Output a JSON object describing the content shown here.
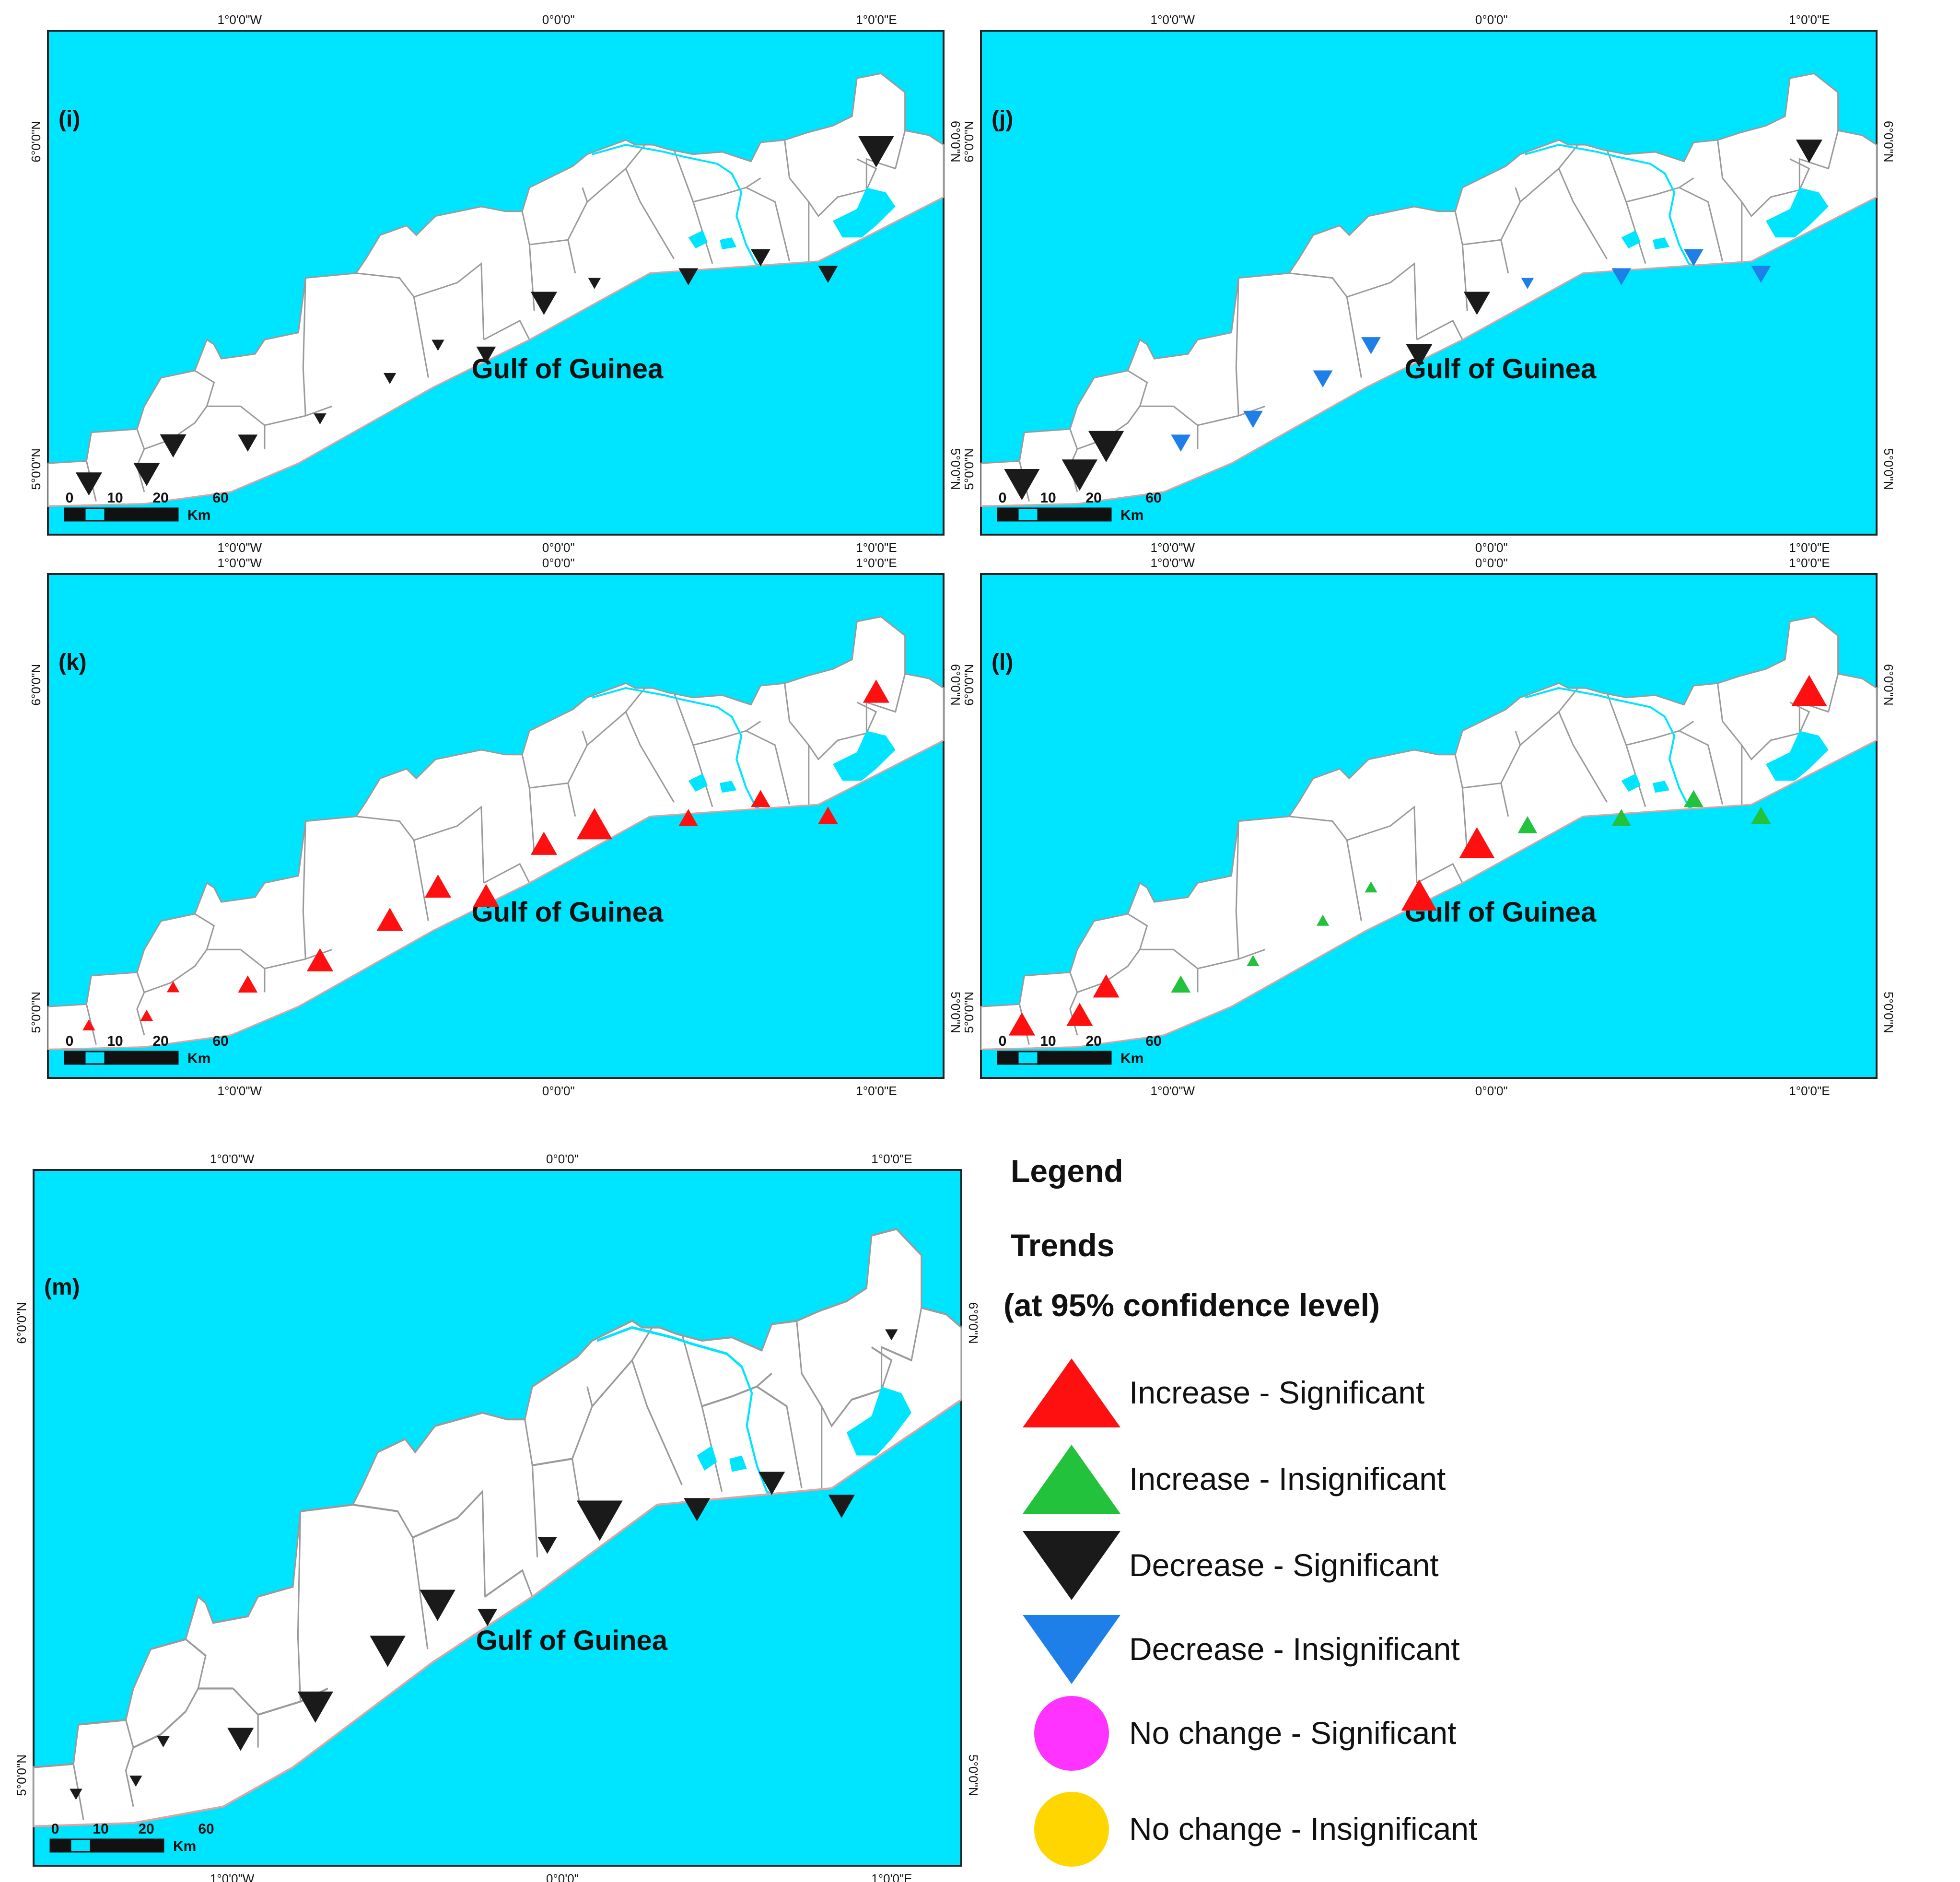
{
  "colors": {
    "sea": "#00E5FF",
    "land": "#FFFFFF",
    "border": "#9A9A9A",
    "coast": "#E8A0A0",
    "increase_significant": "#FF1010",
    "increase_insignificant": "#22C23C",
    "decrease_significant": "#1A1A1A",
    "decrease_insignificant": "#1E7FE8",
    "nochange_significant": "#FF33FF",
    "nochange_insignificant": "#FFD600"
  },
  "axis_labels": {
    "lon_w1": "1°0'0\"W",
    "lon_0": "0°0'0\"",
    "lon_e1": "1°0'0\"E",
    "lat_6n": "6°0'0\"N",
    "lat_5n": "5°0'0\"N"
  },
  "sea_label": "Gulf of Guinea",
  "scale_bar": {
    "ticks": [
      "0",
      "10",
      "20",
      "60"
    ],
    "unit": "Km"
  },
  "panels": [
    {
      "id": "i",
      "label": "(i)",
      "symbols": [
        {
          "d": 0,
          "t": "decrease_significant",
          "s": 2
        },
        {
          "d": 1,
          "t": "decrease_significant",
          "s": 2
        },
        {
          "d": 2,
          "t": "decrease_significant",
          "s": 2
        },
        {
          "d": 3,
          "t": "decrease_significant",
          "s": 1
        },
        {
          "d": 4,
          "t": "decrease_significant",
          "s": 0
        },
        {
          "d": 5,
          "t": "decrease_significant",
          "s": 0
        },
        {
          "d": 6,
          "t": "decrease_significant",
          "s": 0
        },
        {
          "d": 7,
          "t": "decrease_significant",
          "s": 1
        },
        {
          "d": 8,
          "t": "decrease_significant",
          "s": 2
        },
        {
          "d": 9,
          "t": "decrease_significant",
          "s": 0
        },
        {
          "d": 10,
          "t": "decrease_significant",
          "s": 1
        },
        {
          "d": 11,
          "t": "decrease_significant",
          "s": 1
        },
        {
          "d": 12,
          "t": "decrease_significant",
          "s": 1
        },
        {
          "d": 13,
          "t": "decrease_significant",
          "s": 3
        }
      ]
    },
    {
      "id": "j",
      "label": "(j)",
      "symbols": [
        {
          "d": 0,
          "t": "decrease_significant",
          "s": 3
        },
        {
          "d": 1,
          "t": "decrease_significant",
          "s": 3
        },
        {
          "d": 2,
          "t": "decrease_significant",
          "s": 3
        },
        {
          "d": 3,
          "t": "decrease_insignificant",
          "s": 1
        },
        {
          "d": 4,
          "t": "decrease_insignificant",
          "s": 1
        },
        {
          "d": 5,
          "t": "decrease_insignificant",
          "s": 1
        },
        {
          "d": 6,
          "t": "decrease_insignificant",
          "s": 1
        },
        {
          "d": 7,
          "t": "decrease_significant",
          "s": 2
        },
        {
          "d": 8,
          "t": "decrease_significant",
          "s": 2
        },
        {
          "d": 9,
          "t": "decrease_insignificant",
          "s": 0
        },
        {
          "d": 10,
          "t": "decrease_insignificant",
          "s": 1
        },
        {
          "d": 11,
          "t": "decrease_insignificant",
          "s": 1
        },
        {
          "d": 12,
          "t": "decrease_insignificant",
          "s": 1
        },
        {
          "d": 13,
          "t": "decrease_significant",
          "s": 2
        }
      ]
    },
    {
      "id": "k",
      "label": "(k)",
      "symbols": [
        {
          "d": 0,
          "t": "increase_significant",
          "s": 0
        },
        {
          "d": 1,
          "t": "increase_significant",
          "s": 0
        },
        {
          "d": 2,
          "t": "increase_significant",
          "s": 0
        },
        {
          "d": 3,
          "t": "increase_significant",
          "s": 1
        },
        {
          "d": 4,
          "t": "increase_significant",
          "s": 2
        },
        {
          "d": 5,
          "t": "increase_significant",
          "s": 2
        },
        {
          "d": 6,
          "t": "increase_significant",
          "s": 2
        },
        {
          "d": 7,
          "t": "increase_significant",
          "s": 2
        },
        {
          "d": 8,
          "t": "increase_significant",
          "s": 2
        },
        {
          "d": 9,
          "t": "increase_significant",
          "s": 3
        },
        {
          "d": 10,
          "t": "increase_significant",
          "s": 1
        },
        {
          "d": 11,
          "t": "increase_significant",
          "s": 1
        },
        {
          "d": 12,
          "t": "increase_significant",
          "s": 1
        },
        {
          "d": 13,
          "t": "increase_significant",
          "s": 2
        }
      ]
    },
    {
      "id": "l",
      "label": "(l)",
      "symbols": [
        {
          "d": 0,
          "t": "increase_significant",
          "s": 2
        },
        {
          "d": 1,
          "t": "increase_significant",
          "s": 2
        },
        {
          "d": 2,
          "t": "increase_significant",
          "s": 2
        },
        {
          "d": 3,
          "t": "increase_insignificant",
          "s": 1
        },
        {
          "d": 4,
          "t": "increase_insignificant",
          "s": 0
        },
        {
          "d": 5,
          "t": "increase_insignificant",
          "s": 0
        },
        {
          "d": 6,
          "t": "increase_insignificant",
          "s": 0
        },
        {
          "d": 7,
          "t": "increase_significant",
          "s": 3
        },
        {
          "d": 8,
          "t": "increase_significant",
          "s": 3
        },
        {
          "d": 9,
          "t": "increase_insignificant",
          "s": 1
        },
        {
          "d": 10,
          "t": "increase_insignificant",
          "s": 1
        },
        {
          "d": 11,
          "t": "increase_insignificant",
          "s": 1
        },
        {
          "d": 12,
          "t": "increase_insignificant",
          "s": 1
        },
        {
          "d": 13,
          "t": "increase_significant",
          "s": 3
        }
      ]
    },
    {
      "id": "m",
      "label": "(m)",
      "symbols": [
        {
          "d": 0,
          "t": "decrease_significant",
          "s": 0
        },
        {
          "d": 1,
          "t": "decrease_significant",
          "s": 0
        },
        {
          "d": 2,
          "t": "decrease_significant",
          "s": 0
        },
        {
          "d": 3,
          "t": "decrease_significant",
          "s": 2
        },
        {
          "d": 4,
          "t": "decrease_significant",
          "s": 3
        },
        {
          "d": 5,
          "t": "decrease_significant",
          "s": 3
        },
        {
          "d": 6,
          "t": "decrease_significant",
          "s": 3
        },
        {
          "d": 7,
          "t": "decrease_significant",
          "s": 1
        },
        {
          "d": 8,
          "t": "decrease_significant",
          "s": 1
        },
        {
          "d": 9,
          "t": "decrease_significant",
          "s": 4
        },
        {
          "d": 10,
          "t": "decrease_significant",
          "s": 2
        },
        {
          "d": 11,
          "t": "decrease_significant",
          "s": 2
        },
        {
          "d": 12,
          "t": "decrease_significant",
          "s": 2
        },
        {
          "d": 13,
          "t": "decrease_significant",
          "s": 0
        }
      ]
    }
  ],
  "legend": {
    "title": "Legend",
    "subtitle": "Trends",
    "confidence": "(at 95% confidence level)",
    "items": [
      {
        "label": "Increase - Significant",
        "type": "increase_significant",
        "shape": "triangle-up"
      },
      {
        "label": "Increase - Insignificant",
        "type": "increase_insignificant",
        "shape": "triangle-up"
      },
      {
        "label": "Decrease - Significant",
        "type": "decrease_significant",
        "shape": "triangle-down"
      },
      {
        "label": "Decrease - Insignificant",
        "type": "decrease_insignificant",
        "shape": "triangle-down"
      },
      {
        "label": "No change - Significant",
        "type": "nochange_significant",
        "shape": "circle"
      },
      {
        "label": "No change - Insignificant",
        "type": "nochange_insignificant",
        "shape": "circle"
      }
    ]
  }
}
